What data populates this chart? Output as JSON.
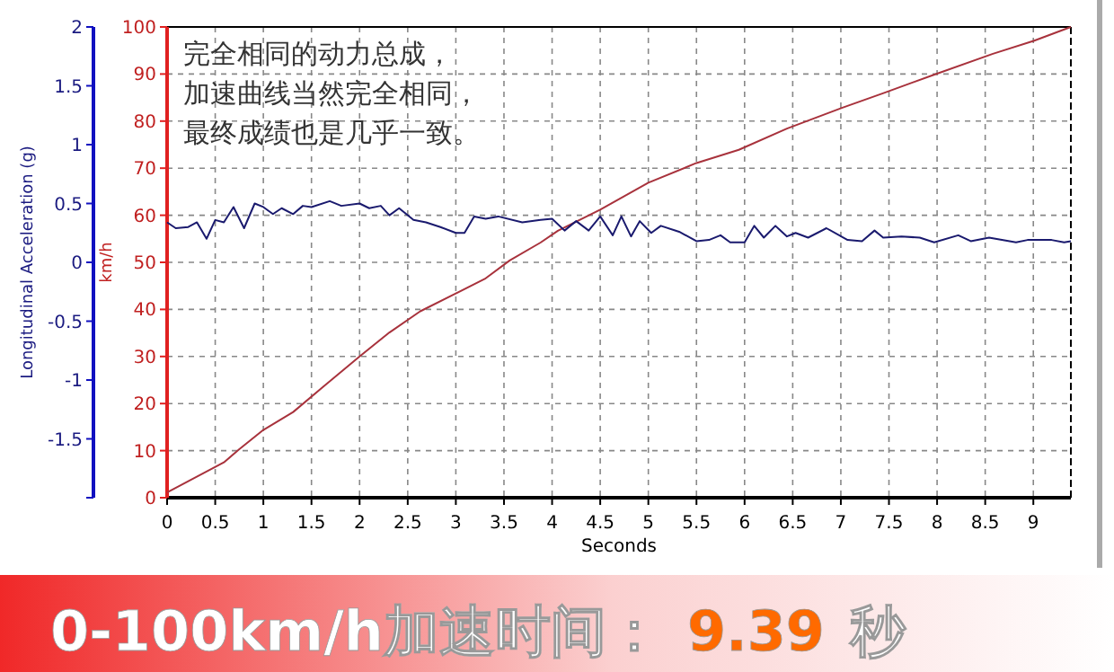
{
  "chart_data": {
    "type": "line",
    "xlabel": "Seconds",
    "ylabel": "km/h",
    "y2label": "Longitudinal Acceleration (g)",
    "xlim": [
      0,
      9.39
    ],
    "xticks": [
      0,
      0.5,
      1,
      1.5,
      2,
      2.5,
      3,
      3.5,
      4,
      4.5,
      5,
      5.5,
      6,
      6.5,
      7,
      7.5,
      8,
      8.5,
      9
    ],
    "ylim": [
      0,
      100
    ],
    "yticks": [
      0,
      10,
      20,
      30,
      40,
      50,
      60,
      70,
      80,
      90,
      100
    ],
    "y2lim": [
      -2,
      2
    ],
    "y2ticks": [
      {
        "value": -2,
        "label": null
      },
      -1.5,
      -1,
      -0.5,
      0,
      0.5,
      1,
      1.5,
      2
    ],
    "grid": true,
    "series": [
      {
        "color": "#a8323c",
        "x": [
          0,
          0.59,
          0.75,
          1.0,
          1.31,
          1.63,
          2.0,
          2.31,
          2.63,
          3.0,
          3.31,
          3.56,
          3.88,
          4.06,
          4.5,
          5.0,
          5.5,
          5.94,
          6.44,
          7.01,
          7.45,
          7.96,
          8.58,
          9.01,
          9.39
        ],
        "values": [
          1.1,
          7.5,
          10.3,
          14.4,
          18.2,
          23.7,
          30,
          35.1,
          39.6,
          43.4,
          46.6,
          50.4,
          54.2,
          56.7,
          61.2,
          66.9,
          71.1,
          73.9,
          78.4,
          82.8,
          86,
          89.8,
          94.3,
          97.1,
          100
        ]
      },
      {
        "color": "#1a1a6e",
        "axis": "y2",
        "x": [
          0,
          0.09,
          0.22,
          0.31,
          0.41,
          0.5,
          0.59,
          0.69,
          0.8,
          0.91,
          1.0,
          1.1,
          1.19,
          1.31,
          1.41,
          1.5,
          1.69,
          1.81,
          2.0,
          2.1,
          2.22,
          2.31,
          2.41,
          2.56,
          2.69,
          2.84,
          3.0,
          3.09,
          3.19,
          3.31,
          3.44,
          3.69,
          3.88,
          4.0,
          4.13,
          4.25,
          4.38,
          4.5,
          4.63,
          4.72,
          4.82,
          4.91,
          5.03,
          5.13,
          5.32,
          5.5,
          5.63,
          5.75,
          5.85,
          6.0,
          6.1,
          6.2,
          6.32,
          6.44,
          6.53,
          6.66,
          6.85,
          7.07,
          7.22,
          7.35,
          7.44,
          7.63,
          7.82,
          7.97,
          8.22,
          8.35,
          8.54,
          8.82,
          8.94,
          9.19,
          9.32,
          9.39
        ],
        "values": [
          0.34,
          0.29,
          0.3,
          0.34,
          0.2,
          0.36,
          0.34,
          0.47,
          0.29,
          0.5,
          0.47,
          0.41,
          0.46,
          0.41,
          0.48,
          0.47,
          0.52,
          0.48,
          0.5,
          0.46,
          0.48,
          0.4,
          0.46,
          0.36,
          0.34,
          0.3,
          0.25,
          0.25,
          0.39,
          0.37,
          0.39,
          0.34,
          0.36,
          0.37,
          0.27,
          0.35,
          0.27,
          0.39,
          0.23,
          0.39,
          0.22,
          0.35,
          0.25,
          0.31,
          0.26,
          0.18,
          0.19,
          0.23,
          0.17,
          0.17,
          0.31,
          0.21,
          0.31,
          0.22,
          0.25,
          0.21,
          0.29,
          0.19,
          0.18,
          0.27,
          0.21,
          0.22,
          0.21,
          0.17,
          0.23,
          0.18,
          0.21,
          0.17,
          0.19,
          0.19,
          0.17,
          0.18
        ]
      }
    ],
    "annotations": [
      "完全相同的动力总成，",
      "加速曲线当然完全相同，",
      "最终成绩也是几乎一致。",
      "0-100km/h加速时间：",
      "9.39",
      "秒"
    ]
  }
}
